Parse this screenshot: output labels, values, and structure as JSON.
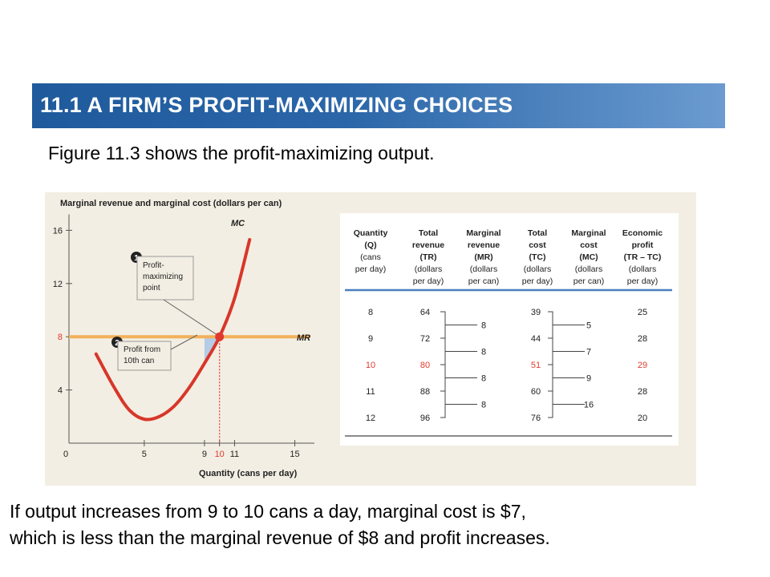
{
  "header": {
    "title": "11.1 A FIRM’S PROFIT-MAXIMIZING CHOICES",
    "subtitle": "Figure 11.3 shows the profit-maximizing output."
  },
  "footer": {
    "line1": "If output increases from 9 to 10 cans a day, marginal cost is $7,",
    "line2": "which is less than the marginal revenue of $8 and profit increases."
  },
  "colors": {
    "banner": "#2a66a8",
    "mc_curve": "#d8362a",
    "mr_line": "#f2b15b",
    "panel_bg": "#f3eee3",
    "highlight": "#e03a2e",
    "profit_area": "#a9c4e6"
  },
  "chart_data": [
    {
      "type": "line",
      "ylabel": "Marginal revenue and marginal cost (dollars per can)",
      "xlabel": "Quantity (cans per day)",
      "xlim": [
        0,
        17
      ],
      "ylim": [
        0,
        16
      ],
      "x_ticks": [
        "0",
        "5",
        "9",
        "10",
        "11",
        "15"
      ],
      "x_tick_values": [
        0,
        5,
        9,
        10,
        11,
        15
      ],
      "y_ticks": [
        "4",
        "8",
        "12",
        "16"
      ],
      "y_tick_values": [
        4,
        8,
        12,
        16
      ],
      "series": [
        {
          "name": "MC",
          "x": [
            1.8,
            3,
            4,
            5,
            6,
            7,
            8,
            9,
            10,
            11,
            12
          ],
          "y": [
            6.7,
            4.2,
            2.5,
            1.8,
            2.0,
            2.8,
            4.2,
            6.0,
            8.0,
            10.9,
            15.3
          ]
        },
        {
          "name": "MR",
          "x": [
            0,
            16
          ],
          "y": [
            8,
            8
          ]
        }
      ],
      "highlight": {
        "x": 10,
        "y": 8,
        "label": "10"
      },
      "profit_from_10th_can": {
        "x": [
          9,
          10
        ],
        "mr": 8,
        "mc_at_9": 6
      },
      "annotations": [
        {
          "number": "1",
          "text": [
            "Profit-",
            "maximizing",
            "point"
          ]
        },
        {
          "number": "2",
          "text": [
            "Profit from",
            "10th can"
          ]
        }
      ]
    },
    {
      "type": "table",
      "columns": [
        [
          "Quantity",
          "(Q)",
          "(cans",
          "per day)"
        ],
        [
          "Total",
          "revenue",
          "(TR)",
          "(dollars",
          "per day)"
        ],
        [
          "Marginal",
          "revenue",
          "(MR)",
          "(dollars",
          "per can)"
        ],
        [
          "Total",
          "cost",
          "(TC)",
          "(dollars",
          "per day)"
        ],
        [
          "Marginal",
          "cost",
          "(MC)",
          "(dollars",
          "per can)"
        ],
        [
          "Economic",
          "profit",
          "(TR – TC)",
          "(dollars",
          "per day)"
        ]
      ],
      "rows": [
        {
          "q": "8",
          "tr": "64",
          "tc": "39",
          "profit": "25"
        },
        {
          "q": "9",
          "tr": "72",
          "tc": "44",
          "profit": "28"
        },
        {
          "q": "10",
          "tr": "80",
          "tc": "51",
          "profit": "29"
        },
        {
          "q": "11",
          "tr": "88",
          "tc": "60",
          "profit": "28"
        },
        {
          "q": "12",
          "tr": "96",
          "tc": "76",
          "profit": "20"
        }
      ],
      "marginal_revenue": [
        "8",
        "8",
        "8",
        "8"
      ],
      "marginal_cost": [
        "5",
        "7",
        "9",
        "16"
      ],
      "highlight_row": 2
    }
  ]
}
